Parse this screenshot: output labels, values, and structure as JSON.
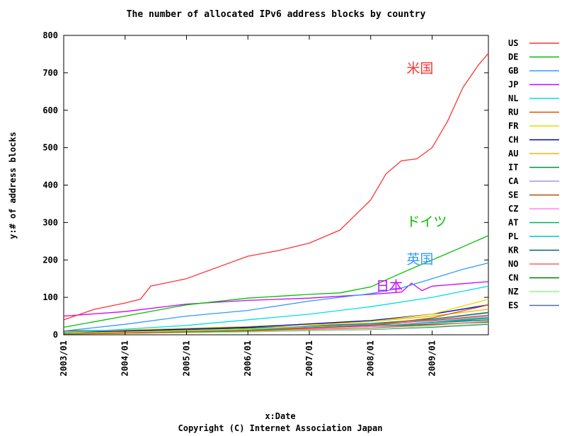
{
  "chart_data": {
    "type": "line",
    "title": "The number of allocated IPv6 address blocks by country",
    "xlabel": "x:Date",
    "ylabel": "y:# of address blocks",
    "copyright": "Copyright (C) Internet Association Japan",
    "x_axis": {
      "ticks": [
        "2003/01",
        "2004/01",
        "2005/01",
        "2006/01",
        "2007/01",
        "2008/01",
        "2009/01"
      ],
      "range": [
        "2003/01",
        "2009/12"
      ]
    },
    "y_axis": {
      "ticks": [
        0,
        100,
        200,
        300,
        400,
        500,
        600,
        700,
        800
      ],
      "range": [
        0,
        800
      ]
    },
    "grid": false,
    "legend_position": "right",
    "series": [
      {
        "name": "US",
        "color": "#ff3333",
        "x": [
          "2003/01",
          "2003/07",
          "2004/01",
          "2004/04",
          "2004/06",
          "2005/01",
          "2005/07",
          "2006/01",
          "2006/07",
          "2007/01",
          "2007/07",
          "2008/01",
          "2008/04",
          "2008/07",
          "2008/10",
          "2009/01",
          "2009/04",
          "2009/07",
          "2009/10",
          "2009/12"
        ],
        "values": [
          40,
          68,
          85,
          95,
          130,
          150,
          180,
          210,
          225,
          245,
          280,
          360,
          430,
          465,
          470,
          500,
          570,
          660,
          720,
          752
        ]
      },
      {
        "name": "DE",
        "color": "#00c000",
        "x": [
          "2003/01",
          "2004/01",
          "2005/01",
          "2006/01",
          "2007/01",
          "2007/07",
          "2008/01",
          "2008/07",
          "2009/01",
          "2009/07",
          "2009/12"
        ],
        "values": [
          20,
          50,
          80,
          98,
          108,
          112,
          128,
          165,
          200,
          235,
          265
        ]
      },
      {
        "name": "GB",
        "color": "#3399ff",
        "x": [
          "2003/01",
          "2004/01",
          "2005/01",
          "2006/01",
          "2007/01",
          "2008/01",
          "2008/07",
          "2009/01",
          "2009/07",
          "2009/12"
        ],
        "values": [
          10,
          28,
          50,
          65,
          90,
          110,
          125,
          150,
          175,
          192
        ]
      },
      {
        "name": "JP",
        "color": "#cc00ff",
        "x": [
          "2003/01",
          "2004/01",
          "2005/01",
          "2006/01",
          "2007/01",
          "2008/01",
          "2008/07",
          "2008/09",
          "2008/11",
          "2009/01",
          "2009/12"
        ],
        "values": [
          50,
          62,
          82,
          92,
          98,
          108,
          114,
          138,
          118,
          130,
          142
        ]
      },
      {
        "name": "NL",
        "color": "#00e0e0",
        "x": [
          "2003/01",
          "2005/01",
          "2007/01",
          "2008/01",
          "2009/01",
          "2009/12"
        ],
        "values": [
          5,
          25,
          55,
          75,
          100,
          130
        ]
      },
      {
        "name": "RU",
        "color": "#e05000",
        "x": [
          "2003/01",
          "2006/01",
          "2008/01",
          "2009/01",
          "2009/12"
        ],
        "values": [
          2,
          10,
          25,
          45,
          80
        ]
      },
      {
        "name": "FR",
        "color": "#e0e000",
        "x": [
          "2003/01",
          "2006/01",
          "2008/01",
          "2009/01",
          "2009/12"
        ],
        "values": [
          4,
          15,
          35,
          55,
          95
        ]
      },
      {
        "name": "CH",
        "color": "#0000c0",
        "x": [
          "2003/01",
          "2006/01",
          "2008/01",
          "2009/01",
          "2009/12"
        ],
        "values": [
          5,
          20,
          38,
          55,
          80
        ]
      },
      {
        "name": "AU",
        "color": "#ffb000",
        "x": [
          "2003/01",
          "2006/01",
          "2008/01",
          "2009/01",
          "2009/12"
        ],
        "values": [
          8,
          22,
          35,
          50,
          68
        ]
      },
      {
        "name": "IT",
        "color": "#009050",
        "x": [
          "2003/01",
          "2006/01",
          "2008/01",
          "2009/01",
          "2009/12"
        ],
        "values": [
          6,
          18,
          30,
          42,
          60
        ]
      },
      {
        "name": "CA",
        "color": "#9999ff",
        "x": [
          "2003/01",
          "2006/01",
          "2008/01",
          "2009/01",
          "2009/12"
        ],
        "values": [
          5,
          15,
          28,
          40,
          58
        ]
      },
      {
        "name": "SE",
        "color": "#b05000",
        "x": [
          "2003/01",
          "2006/01",
          "2008/01",
          "2009/01",
          "2009/12"
        ],
        "values": [
          6,
          18,
          28,
          38,
          52
        ]
      },
      {
        "name": "CZ",
        "color": "#ff80ff",
        "x": [
          "2003/01",
          "2006/01",
          "2008/01",
          "2009/01",
          "2009/12"
        ],
        "values": [
          2,
          10,
          22,
          35,
          50
        ]
      },
      {
        "name": "AT",
        "color": "#00b060",
        "x": [
          "2003/01",
          "2006/01",
          "2008/01",
          "2009/01",
          "2009/12"
        ],
        "values": [
          4,
          14,
          24,
          34,
          46
        ]
      },
      {
        "name": "PL",
        "color": "#00c0c0",
        "x": [
          "2003/01",
          "2006/01",
          "2008/01",
          "2009/01",
          "2009/12"
        ],
        "values": [
          3,
          12,
          22,
          32,
          44
        ]
      },
      {
        "name": "KR",
        "color": "#006080",
        "x": [
          "2003/01",
          "2006/01",
          "2008/01",
          "2009/01",
          "2009/12"
        ],
        "values": [
          10,
          18,
          26,
          32,
          40
        ]
      },
      {
        "name": "NO",
        "color": "#ff6060",
        "x": [
          "2003/01",
          "2006/01",
          "2008/01",
          "2009/01",
          "2009/12"
        ],
        "values": [
          3,
          10,
          18,
          26,
          36
        ]
      },
      {
        "name": "CN",
        "color": "#008000",
        "x": [
          "2003/01",
          "2006/01",
          "2008/01",
          "2009/01",
          "2009/12"
        ],
        "values": [
          6,
          14,
          22,
          28,
          34
        ]
      },
      {
        "name": "NZ",
        "color": "#80ff80",
        "x": [
          "2003/01",
          "2006/01",
          "2008/01",
          "2009/01",
          "2009/12"
        ],
        "values": [
          2,
          8,
          15,
          22,
          30
        ]
      },
      {
        "name": "ES",
        "color": "#5070a0",
        "x": [
          "2003/01",
          "2006/01",
          "2008/01",
          "2009/01",
          "2009/12"
        ],
        "values": [
          2,
          8,
          14,
          20,
          28
        ]
      }
    ],
    "annotations": [
      {
        "text": "米国",
        "series": "US",
        "color": "#ff3333",
        "x": "2008/08",
        "y": 700
      },
      {
        "text": "ドイツ",
        "series": "DE",
        "color": "#00c000",
        "x": "2008/08",
        "y": 290
      },
      {
        "text": "英国",
        "series": "GB",
        "color": "#3399ff",
        "x": "2008/08",
        "y": 190
      },
      {
        "text": "日本",
        "series": "JP",
        "color": "#cc00ff",
        "x": "2008/02",
        "y": 118
      }
    ]
  }
}
